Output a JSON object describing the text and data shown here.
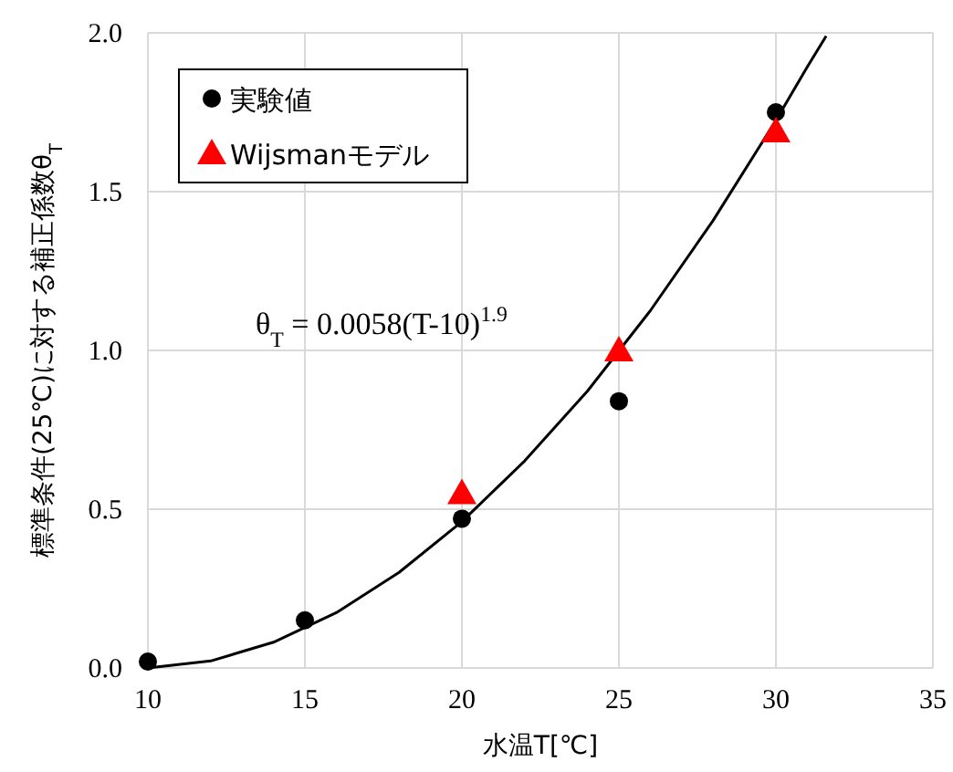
{
  "chart_data": {
    "type": "scatter",
    "xlabel": "水温T[℃]",
    "ylabel": "標準条件(25℃)に対する補正係数θ$_{T}$",
    "annotations": [
      "θ$_{T}$ = 0.0058(T-10)$^{1.9}$"
    ],
    "series": [
      {
        "name": "実験値",
        "marker": "circle",
        "color": "#000000",
        "x": [
          10,
          15,
          20,
          25,
          30
        ],
        "values": [
          0.02,
          0.15,
          0.47,
          0.84,
          1.75
        ]
      },
      {
        "name": "Wijsmanモデル",
        "marker": "triangle",
        "color": "#ff0000",
        "x": [
          20,
          25,
          30
        ],
        "values": [
          0.55,
          1.0,
          1.69
        ]
      },
      {
        "type": "line",
        "marker": "none",
        "color": "#000000",
        "x": [
          10,
          12,
          14,
          16,
          18,
          20,
          22,
          24,
          26,
          28,
          30,
          31,
          31.6
        ],
        "values": [
          0,
          0.022,
          0.081,
          0.174,
          0.301,
          0.461,
          0.652,
          0.872,
          1.125,
          1.409,
          1.724,
          1.893,
          1.99
        ]
      }
    ],
    "xlim": [
      10,
      35
    ],
    "xticks": [
      10,
      15,
      20,
      25,
      30,
      35
    ],
    "ylim": [
      0,
      2.0
    ],
    "yticks": [
      {
        "value": 0,
        "label": "0.0"
      },
      0.5,
      {
        "value": 1.0,
        "label": "1.0"
      },
      1.5,
      {
        "value": 2.0,
        "label": "2.0"
      }
    ],
    "grid": true,
    "legend": "top left"
  }
}
